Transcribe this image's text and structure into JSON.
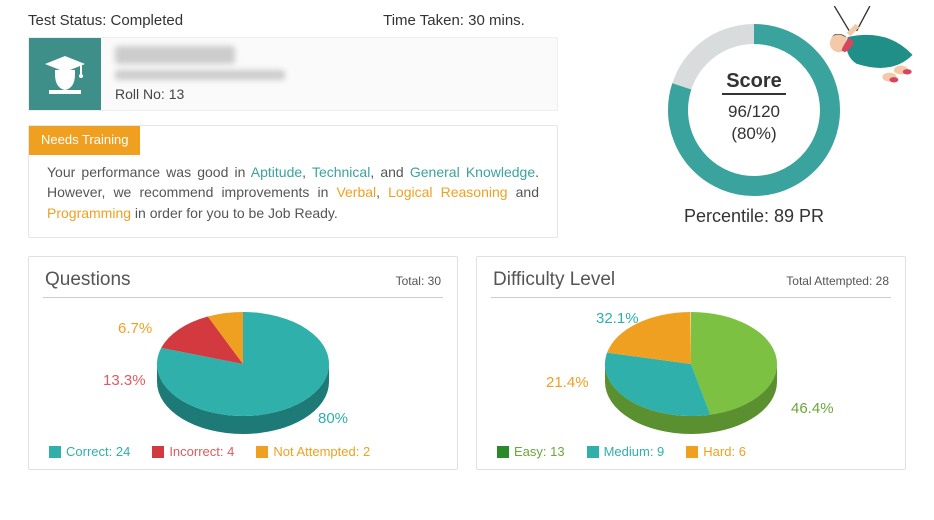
{
  "header": {
    "status_label": "Test Status: ",
    "status_value": "Completed",
    "time_label": "Time Taken: ",
    "time_value": "30 mins."
  },
  "user": {
    "roll_label": "Roll No: ",
    "roll_value": "13"
  },
  "feedback": {
    "badge": "Needs Training",
    "pre": "Your performance was good in ",
    "good1": "Aptitude",
    "good2": "Technical",
    "good3": "General Knowledge",
    "mid": ". However, we recommend improvements in ",
    "bad1": "Verbal",
    "bad2": "Logical Reasoning",
    "bad3": "Programming",
    "post": " in order for you to be Job Ready."
  },
  "score": {
    "label": "Score",
    "value": "96/120",
    "pct": "(80%)",
    "percentile": "Percentile: 89 PR",
    "donut_pct": 80,
    "ring_fill": "#3aa39e",
    "ring_empty": "#d9dcdc"
  },
  "questions": {
    "title": "Questions",
    "total_label": "Total: 30",
    "slices": [
      {
        "label": "Correct: 24",
        "pct": 80.0,
        "pct_label": "80%",
        "color": "#2fb0aa",
        "label_color": "#2fb0aa"
      },
      {
        "label": "Incorrect: 4",
        "pct": 13.3,
        "pct_label": "13.3%",
        "color": "#d33a3f",
        "label_color": "#e05a5f"
      },
      {
        "label": "Not Attempted: 2",
        "pct": 6.7,
        "pct_label": "6.7%",
        "color": "#f0a020",
        "label_color": "#f0a020"
      }
    ],
    "side_color": "#1e7a76"
  },
  "difficulty": {
    "title": "Difficulty Level",
    "total_label": "Total Attempted: 28",
    "slices": [
      {
        "label": "Easy: 13",
        "pct": 46.4,
        "pct_label": "46.4%",
        "color": "#7cc142",
        "label_color": "#6aa838"
      },
      {
        "label": "Medium: 9",
        "pct": 32.1,
        "pct_label": "32.1%",
        "color": "#2fb0aa",
        "label_color": "#2fb0aa"
      },
      {
        "label": "Hard: 6",
        "pct": 21.4,
        "pct_label": "21.4%",
        "color": "#f0a020",
        "label_color": "#f0a020"
      }
    ],
    "side_color": "#5a9030",
    "legend_first_color": "#2a8a2a"
  }
}
